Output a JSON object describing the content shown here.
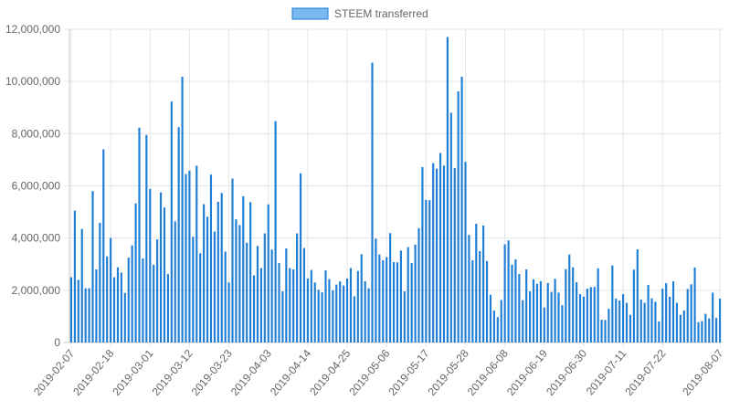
{
  "chart_data": {
    "type": "bar",
    "legend": {
      "position": "top",
      "entries": [
        "STEEM transferred"
      ]
    },
    "grid": true,
    "ylim": [
      0,
      12000000
    ],
    "y_ticks": [
      "0",
      "2,000,000",
      "4,000,000",
      "6,000,000",
      "8,000,000",
      "10,000,000",
      "12,000,000"
    ],
    "x_tick_labels": [
      "2019-02-07",
      "2019-02-18",
      "2019-03-01",
      "2019-03-12",
      "2019-03-23",
      "2019-04-03",
      "2019-04-14",
      "2019-04-25",
      "2019-05-06",
      "2019-05-17",
      "2019-05-28",
      "2019-06-08",
      "2019-06-19",
      "2019-06-30",
      "2019-07-11",
      "2019-07-22",
      "2019-08-07"
    ],
    "x_tick_indices": [
      0,
      11,
      22,
      33,
      44,
      55,
      66,
      77,
      88,
      99,
      110,
      121,
      132,
      143,
      154,
      165,
      181
    ],
    "start_date": "2019-02-07",
    "colors": {
      "bar_fill": "#1e7ed6",
      "legend_fill": "#7ab8f0",
      "legend_border": "#1e7ed6",
      "grid": "#e5e5e5",
      "axis": "#c8c8c8",
      "text": "#666666"
    },
    "series": [
      {
        "name": "STEEM transferred",
        "values": [
          2500000,
          5050000,
          2400000,
          4350000,
          2080000,
          2080000,
          5800000,
          2800000,
          4580000,
          7400000,
          3300000,
          4000000,
          2500000,
          2880000,
          2680000,
          1900000,
          3250000,
          3720000,
          5330000,
          8230000,
          3220000,
          7950000,
          5880000,
          2980000,
          3950000,
          5750000,
          5170000,
          2620000,
          9230000,
          4640000,
          8250000,
          10180000,
          6450000,
          6580000,
          4050000,
          6770000,
          3420000,
          5300000,
          4820000,
          6430000,
          4250000,
          5390000,
          5730000,
          3480000,
          2300000,
          6280000,
          4720000,
          4500000,
          5600000,
          3820000,
          5380000,
          2570000,
          3700000,
          2850000,
          4180000,
          5290000,
          3560000,
          8480000,
          3040000,
          1960000,
          3600000,
          2850000,
          2800000,
          4180000,
          6480000,
          3620000,
          2450000,
          2780000,
          2300000,
          2020000,
          1920000,
          2760000,
          2430000,
          2000000,
          2220000,
          2340000,
          2180000,
          2450000,
          2850000,
          1770000,
          2740000,
          3380000,
          2350000,
          2080000,
          10720000,
          3980000,
          3370000,
          3150000,
          3270000,
          4190000,
          3080000,
          3070000,
          3520000,
          1960000,
          3650000,
          3040000,
          3750000,
          4380000,
          6720000,
          5460000,
          5450000,
          6870000,
          6660000,
          7260000,
          6780000,
          11700000,
          8800000,
          6680000,
          9620000,
          10180000,
          6920000,
          4120000,
          3150000,
          4550000,
          3500000,
          4480000,
          3120000,
          1830000,
          1220000,
          970000,
          1630000,
          3760000,
          3910000,
          2980000,
          3180000,
          2620000,
          1620000,
          2800000,
          1960000,
          2420000,
          2250000,
          2350000,
          1340000,
          2280000,
          1940000,
          2440000,
          1910000,
          1430000,
          2810000,
          3370000,
          2880000,
          2310000,
          1850000,
          1760000,
          2060000,
          2120000,
          2130000,
          2840000,
          870000,
          860000,
          1290000,
          2950000,
          1680000,
          1610000,
          1850000,
          1520000,
          1060000,
          2790000,
          3570000,
          1640000,
          1520000,
          2210000,
          1690000,
          1560000,
          810000,
          2060000,
          2270000,
          1750000,
          2340000,
          1520000,
          1060000,
          1230000,
          2050000,
          2230000,
          2870000,
          780000,
          820000,
          1100000,
          920000,
          1910000,
          940000,
          1680000
        ]
      }
    ]
  }
}
